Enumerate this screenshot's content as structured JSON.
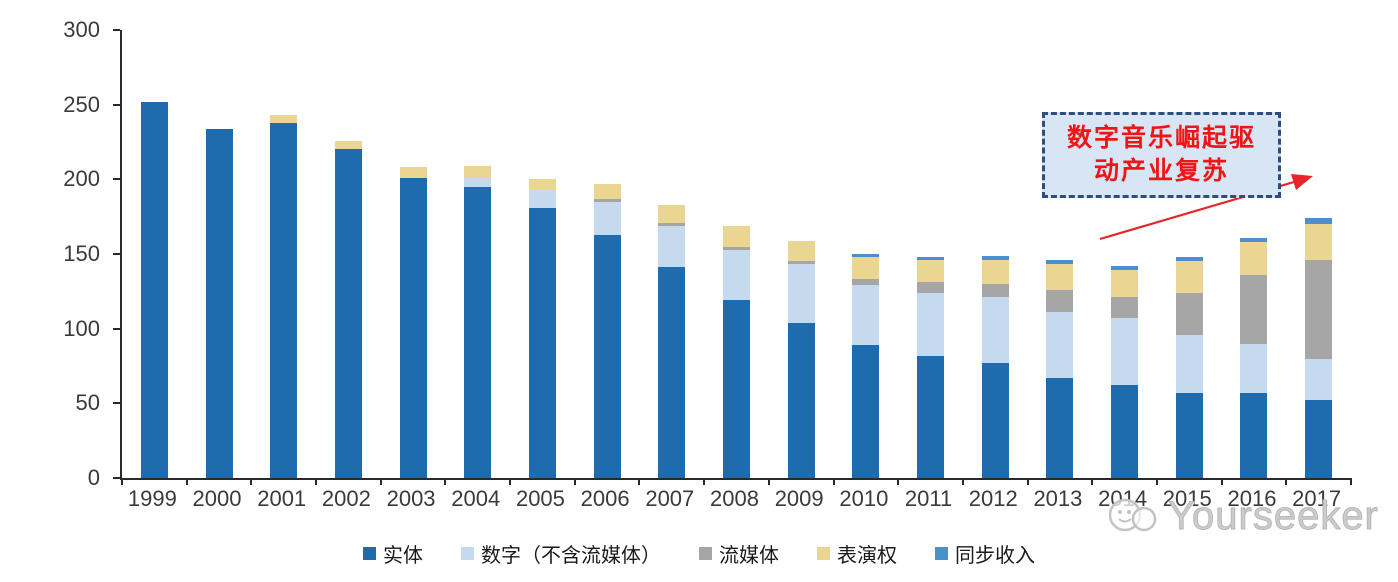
{
  "chart_data": {
    "type": "bar",
    "stacked": true,
    "title": "",
    "xlabel": "",
    "ylabel": "",
    "ylim": [
      0,
      300
    ],
    "y_ticks": [
      0,
      50,
      100,
      150,
      200,
      250,
      300
    ],
    "grid": false,
    "legend_position": "bottom",
    "categories": [
      "1999",
      "2000",
      "2001",
      "2002",
      "2003",
      "2004",
      "2005",
      "2006",
      "2007",
      "2008",
      "2009",
      "2010",
      "2011",
      "2012",
      "2013",
      "2014",
      "2015",
      "2016",
      "2017"
    ],
    "series": [
      {
        "name": "实体",
        "color": "#1e6bad",
        "values": [
          252,
          234,
          238,
          220,
          201,
          195,
          181,
          163,
          141,
          119,
          104,
          89,
          82,
          77,
          67,
          62,
          57,
          57,
          52
        ]
      },
      {
        "name": "数字（不含流媒体）",
        "color": "#c5daef",
        "values": [
          0,
          0,
          0,
          0,
          0,
          6,
          12,
          22,
          28,
          34,
          39,
          40,
          42,
          44,
          44,
          45,
          39,
          33,
          28
        ]
      },
      {
        "name": "流媒体",
        "color": "#a6a6a6",
        "values": [
          0,
          0,
          0,
          0,
          0,
          0,
          0,
          2,
          2,
          2,
          2,
          4,
          7,
          9,
          15,
          14,
          28,
          46,
          66
        ]
      },
      {
        "name": "表演权",
        "color": "#ead592",
        "values": [
          0,
          0,
          5,
          6,
          7,
          8,
          7,
          10,
          12,
          14,
          14,
          15,
          15,
          16,
          17,
          18,
          21,
          22,
          24
        ]
      },
      {
        "name": "同步收入",
        "color": "#4a90ce",
        "values": [
          0,
          0,
          0,
          0,
          0,
          0,
          0,
          0,
          0,
          0,
          0,
          2,
          2,
          3,
          3,
          3,
          3,
          3,
          4
        ]
      }
    ]
  },
  "annotation": {
    "line1": "数字音乐崛起驱",
    "line2": "动产业复苏",
    "full_text": "数字音乐崛起驱动产业复苏"
  },
  "watermark": {
    "text": "Yourseeker",
    "logo": "speech-bubble-smiley-icon"
  },
  "colors": {
    "physical": "#1e6bad",
    "digital_excl_streaming": "#c5daef",
    "streaming": "#a6a6a6",
    "performance_rights": "#ead592",
    "sync": "#4a90ce",
    "axis": "#2a2a2a",
    "annotation_border": "#2f4e7e",
    "annotation_fill": "#d8e5f4",
    "annotation_text": "#f01414",
    "arrow": "#e8262a",
    "watermark_gray": "#c3c3c3"
  }
}
